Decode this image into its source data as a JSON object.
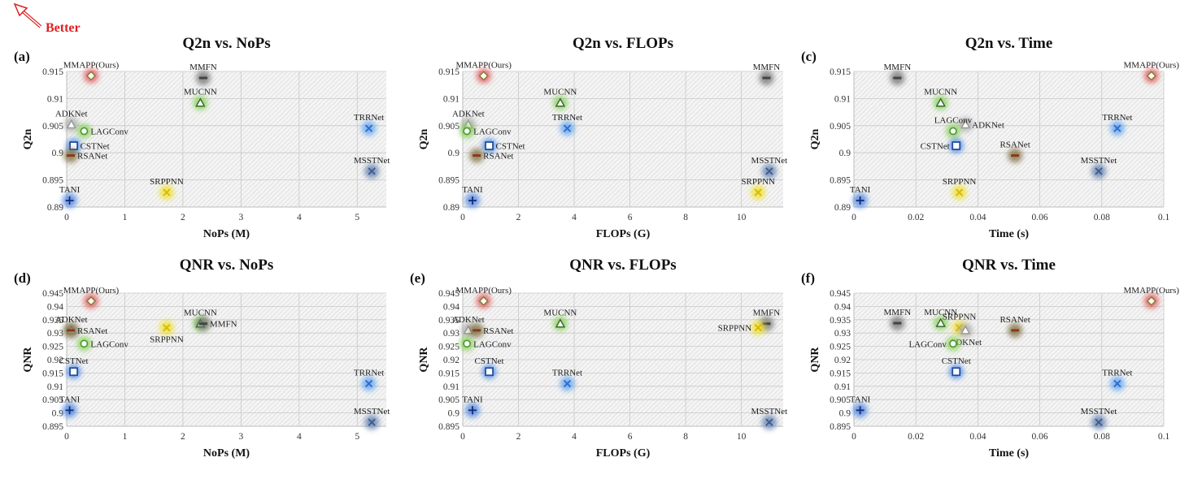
{
  "better_label": "Better",
  "colors": {
    "blue": "#3f7fe0",
    "green": "#7fcf4f",
    "red": "#e04a4a",
    "yellow": "#f0e020",
    "gray": "#6f6f6f",
    "brown": "#7a6a3a",
    "lightblue": "#5aa0ee",
    "slate": "#5a78a8",
    "silver": "#a8a8a8",
    "arrow": "#e02020"
  },
  "chart_data": [
    {
      "type": "scatter",
      "panel": "(a)",
      "title": "Q2n vs. NoPs",
      "xlabel": "NoPs (M)",
      "ylabel": "Q2n",
      "xlim": [
        0,
        5.5
      ],
      "ylim": [
        0.89,
        0.915
      ],
      "xticks": [
        0,
        1,
        2,
        3,
        4,
        5
      ],
      "yticks": [
        0.89,
        0.895,
        0.9,
        0.905,
        0.91,
        0.915
      ],
      "ytick_labels": [
        "0.89",
        "0.895",
        "0.9",
        "0.905",
        "0.91",
        "0.915"
      ],
      "grid": true,
      "points": [
        {
          "name": "MMAPP(Ours)",
          "x": 0.42,
          "y": 0.9142,
          "marker": "diamond",
          "color": "red",
          "label_pos": "above"
        },
        {
          "name": "MMFN",
          "x": 2.35,
          "y": 0.9138,
          "marker": "dash",
          "color": "gray",
          "label_pos": "above"
        },
        {
          "name": "MUCNN",
          "x": 2.3,
          "y": 0.9092,
          "marker": "triangle",
          "color": "green",
          "label_pos": "above"
        },
        {
          "name": "ADKNet",
          "x": 0.08,
          "y": 0.9052,
          "marker": "triangle",
          "color": "silver",
          "label_pos": "above"
        },
        {
          "name": "LAGConv",
          "x": 0.3,
          "y": 0.904,
          "marker": "circle",
          "color": "green",
          "label_pos": "right"
        },
        {
          "name": "CSTNet",
          "x": 0.12,
          "y": 0.9013,
          "marker": "square",
          "color": "blue",
          "label_pos": "right"
        },
        {
          "name": "RSANet",
          "x": 0.07,
          "y": 0.8995,
          "marker": "dash",
          "color": "brown",
          "label_pos": "right"
        },
        {
          "name": "TRRNet",
          "x": 5.2,
          "y": 0.9045,
          "marker": "x",
          "color": "lightblue",
          "label_pos": "above"
        },
        {
          "name": "MSSTNet",
          "x": 5.25,
          "y": 0.8966,
          "marker": "x",
          "color": "slate",
          "label_pos": "above"
        },
        {
          "name": "SRPPNN",
          "x": 1.72,
          "y": 0.8927,
          "marker": "x",
          "color": "yellow",
          "label_pos": "above"
        },
        {
          "name": "TANI",
          "x": 0.05,
          "y": 0.8912,
          "marker": "plus",
          "color": "blue",
          "label_pos": "above"
        }
      ]
    },
    {
      "type": "scatter",
      "panel": "",
      "title": "Q2n vs. FLOPs",
      "xlabel": "FLOPs (G)",
      "ylabel": "Q2n",
      "xlim": [
        0,
        11.5
      ],
      "ylim": [
        0.89,
        0.915
      ],
      "xticks": [
        0,
        2,
        4,
        6,
        8,
        10
      ],
      "yticks": [
        0.89,
        0.895,
        0.9,
        0.905,
        0.91,
        0.915
      ],
      "ytick_labels": [
        "0.89",
        "0.895",
        "0.9",
        "0.905",
        "0.91",
        "0.915"
      ],
      "grid": true,
      "points": [
        {
          "name": "MMAPP(Ours)",
          "x": 0.75,
          "y": 0.9142,
          "marker": "diamond",
          "color": "red",
          "label_pos": "above"
        },
        {
          "name": "MMFN",
          "x": 10.9,
          "y": 0.9138,
          "marker": "dash",
          "color": "gray",
          "label_pos": "above"
        },
        {
          "name": "MUCNN",
          "x": 3.5,
          "y": 0.9092,
          "marker": "triangle",
          "color": "green",
          "label_pos": "above"
        },
        {
          "name": "ADKNet",
          "x": 0.2,
          "y": 0.9052,
          "marker": "triangle",
          "color": "silver",
          "label_pos": "above"
        },
        {
          "name": "LAGConv",
          "x": 0.15,
          "y": 0.904,
          "marker": "circle",
          "color": "green",
          "label_pos": "right"
        },
        {
          "name": "CSTNet",
          "x": 0.95,
          "y": 0.9013,
          "marker": "square",
          "color": "blue",
          "label_pos": "right"
        },
        {
          "name": "RSANet",
          "x": 0.5,
          "y": 0.8995,
          "marker": "dash",
          "color": "brown",
          "label_pos": "right"
        },
        {
          "name": "TRRNet",
          "x": 3.75,
          "y": 0.9045,
          "marker": "x",
          "color": "lightblue",
          "label_pos": "above"
        },
        {
          "name": "MSSTNet",
          "x": 11.0,
          "y": 0.8966,
          "marker": "x",
          "color": "slate",
          "label_pos": "above"
        },
        {
          "name": "SRPPNN",
          "x": 10.6,
          "y": 0.8927,
          "marker": "x",
          "color": "yellow",
          "label_pos": "above"
        },
        {
          "name": "TANI",
          "x": 0.35,
          "y": 0.8912,
          "marker": "plus",
          "color": "blue",
          "label_pos": "above"
        }
      ]
    },
    {
      "type": "scatter",
      "panel": "(c)",
      "title": "Q2n vs. Time",
      "xlabel": "Time (s)",
      "ylabel": "Q2n",
      "xlim": [
        0,
        0.1
      ],
      "ylim": [
        0.89,
        0.915
      ],
      "xticks": [
        0,
        0.02,
        0.04,
        0.06,
        0.08,
        0.1
      ],
      "yticks": [
        0.89,
        0.895,
        0.9,
        0.905,
        0.91,
        0.915
      ],
      "xtick_labels": [
        "0",
        "0.02",
        "0.04",
        "0.06",
        "0.08",
        "0.1"
      ],
      "ytick_labels": [
        "0.89",
        "0.895",
        "0.9",
        "0.905",
        "0.91",
        "0.915"
      ],
      "grid": true,
      "points": [
        {
          "name": "MMAPP(Ours)",
          "x": 0.096,
          "y": 0.9142,
          "marker": "diamond",
          "color": "red",
          "label_pos": "above"
        },
        {
          "name": "MMFN",
          "x": 0.014,
          "y": 0.9138,
          "marker": "dash",
          "color": "gray",
          "label_pos": "above"
        },
        {
          "name": "MUCNN",
          "x": 0.028,
          "y": 0.9092,
          "marker": "triangle",
          "color": "green",
          "label_pos": "above"
        },
        {
          "name": "ADKNet",
          "x": 0.036,
          "y": 0.9052,
          "marker": "triangle",
          "color": "silver",
          "label_pos": "right"
        },
        {
          "name": "LAGConv",
          "x": 0.032,
          "y": 0.904,
          "marker": "circle",
          "color": "green",
          "label_pos": "above"
        },
        {
          "name": "CSTNet",
          "x": 0.033,
          "y": 0.9013,
          "marker": "square",
          "color": "blue",
          "label_pos": "left"
        },
        {
          "name": "RSANet",
          "x": 0.052,
          "y": 0.8995,
          "marker": "dash",
          "color": "brown",
          "label_pos": "above"
        },
        {
          "name": "TRRNet",
          "x": 0.085,
          "y": 0.9045,
          "marker": "x",
          "color": "lightblue",
          "label_pos": "above"
        },
        {
          "name": "MSSTNet",
          "x": 0.079,
          "y": 0.8966,
          "marker": "x",
          "color": "slate",
          "label_pos": "above"
        },
        {
          "name": "SRPPNN",
          "x": 0.034,
          "y": 0.8927,
          "marker": "x",
          "color": "yellow",
          "label_pos": "above"
        },
        {
          "name": "TANI",
          "x": 0.002,
          "y": 0.8912,
          "marker": "plus",
          "color": "blue",
          "label_pos": "above"
        }
      ]
    },
    {
      "type": "scatter",
      "panel": "(d)",
      "title": "QNR vs. NoPs",
      "xlabel": "NoPs (M)",
      "ylabel": "QNR",
      "xlim": [
        0,
        5.5
      ],
      "ylim": [
        0.895,
        0.945
      ],
      "xticks": [
        0,
        1,
        2,
        3,
        4,
        5
      ],
      "yticks": [
        0.895,
        0.9,
        0.905,
        0.91,
        0.915,
        0.92,
        0.925,
        0.93,
        0.935,
        0.94,
        0.945
      ],
      "ytick_labels": [
        "0.895",
        "0.9",
        "0.905",
        "0.91",
        "0.915",
        "0.92",
        "0.925",
        "0.93",
        "0.935",
        "0.94",
        "0.945"
      ],
      "grid": true,
      "points": [
        {
          "name": "MMAPP(Ours)",
          "x": 0.42,
          "y": 0.942,
          "marker": "diamond",
          "color": "red",
          "label_pos": "above"
        },
        {
          "name": "MUCNN",
          "x": 2.3,
          "y": 0.9335,
          "marker": "triangle",
          "color": "green",
          "label_pos": "above"
        },
        {
          "name": "MMFN",
          "x": 2.35,
          "y": 0.9335,
          "marker": "dash",
          "color": "gray",
          "label_pos": "right"
        },
        {
          "name": "ADKNet",
          "x": 0.08,
          "y": 0.931,
          "marker": "triangle",
          "color": "silver",
          "label_pos": "above"
        },
        {
          "name": "RSANet",
          "x": 0.07,
          "y": 0.931,
          "marker": "dash",
          "color": "brown",
          "label_pos": "right"
        },
        {
          "name": "LAGConv",
          "x": 0.3,
          "y": 0.926,
          "marker": "circle",
          "color": "green",
          "label_pos": "right"
        },
        {
          "name": "SRPPNN",
          "x": 1.72,
          "y": 0.932,
          "marker": "x",
          "color": "yellow",
          "label_pos": "below"
        },
        {
          "name": "CSTNet",
          "x": 0.12,
          "y": 0.9155,
          "marker": "square",
          "color": "blue",
          "label_pos": "above"
        },
        {
          "name": "TRRNet",
          "x": 5.2,
          "y": 0.911,
          "marker": "x",
          "color": "lightblue",
          "label_pos": "above"
        },
        {
          "name": "TANI",
          "x": 0.05,
          "y": 0.901,
          "marker": "plus",
          "color": "blue",
          "label_pos": "above"
        },
        {
          "name": "MSSTNet",
          "x": 5.25,
          "y": 0.8965,
          "marker": "x",
          "color": "slate",
          "label_pos": "above"
        }
      ]
    },
    {
      "type": "scatter",
      "panel": "(e)",
      "title": "QNR vs. FLOPs",
      "xlabel": "FLOPs (G)",
      "ylabel": "QNR",
      "xlim": [
        0,
        11.5
      ],
      "ylim": [
        0.895,
        0.945
      ],
      "xticks": [
        0,
        2,
        4,
        6,
        8,
        10
      ],
      "yticks": [
        0.895,
        0.9,
        0.905,
        0.91,
        0.915,
        0.92,
        0.925,
        0.93,
        0.935,
        0.94,
        0.945
      ],
      "ytick_labels": [
        "0.895",
        "0.9",
        "0.905",
        "0.91",
        "0.915",
        "0.92",
        "0.925",
        "0.93",
        "0.935",
        "0.94",
        "0.945"
      ],
      "grid": true,
      "points": [
        {
          "name": "MMAPP(Ours)",
          "x": 0.75,
          "y": 0.942,
          "marker": "diamond",
          "color": "red",
          "label_pos": "above"
        },
        {
          "name": "MUCNN",
          "x": 3.5,
          "y": 0.9335,
          "marker": "triangle",
          "color": "green",
          "label_pos": "above"
        },
        {
          "name": "MMFN",
          "x": 10.9,
          "y": 0.9335,
          "marker": "dash",
          "color": "gray",
          "label_pos": "above"
        },
        {
          "name": "SRPPNN",
          "x": 10.6,
          "y": 0.932,
          "marker": "x",
          "color": "yellow",
          "label_pos": "left"
        },
        {
          "name": "ADKNet",
          "x": 0.2,
          "y": 0.931,
          "marker": "triangle",
          "color": "silver",
          "label_pos": "above"
        },
        {
          "name": "RSANet",
          "x": 0.5,
          "y": 0.931,
          "marker": "dash",
          "color": "brown",
          "label_pos": "right"
        },
        {
          "name": "LAGConv",
          "x": 0.15,
          "y": 0.926,
          "marker": "circle",
          "color": "green",
          "label_pos": "right"
        },
        {
          "name": "CSTNet",
          "x": 0.95,
          "y": 0.9155,
          "marker": "square",
          "color": "blue",
          "label_pos": "above"
        },
        {
          "name": "TRRNet",
          "x": 3.75,
          "y": 0.911,
          "marker": "x",
          "color": "lightblue",
          "label_pos": "above"
        },
        {
          "name": "TANI",
          "x": 0.35,
          "y": 0.901,
          "marker": "plus",
          "color": "blue",
          "label_pos": "above"
        },
        {
          "name": "MSSTNet",
          "x": 11.0,
          "y": 0.8965,
          "marker": "x",
          "color": "slate",
          "label_pos": "above"
        }
      ]
    },
    {
      "type": "scatter",
      "panel": "(f)",
      "title": "QNR vs. Time",
      "xlabel": "Time (s)",
      "ylabel": "QNR",
      "xlim": [
        0,
        0.1
      ],
      "ylim": [
        0.895,
        0.945
      ],
      "xticks": [
        0,
        0.02,
        0.04,
        0.06,
        0.08,
        0.1
      ],
      "yticks": [
        0.895,
        0.9,
        0.905,
        0.91,
        0.915,
        0.92,
        0.925,
        0.93,
        0.935,
        0.94,
        0.945
      ],
      "xtick_labels": [
        "0",
        "0.02",
        "0.04",
        "0.06",
        "0.08",
        "0.1"
      ],
      "ytick_labels": [
        "0.895",
        "0.9",
        "0.905",
        "0.91",
        "0.915",
        "0.92",
        "0.925",
        "0.93",
        "0.935",
        "0.94",
        "0.945"
      ],
      "grid": true,
      "points": [
        {
          "name": "MMAPP(Ours)",
          "x": 0.096,
          "y": 0.942,
          "marker": "diamond",
          "color": "red",
          "label_pos": "above"
        },
        {
          "name": "MMFN",
          "x": 0.014,
          "y": 0.9337,
          "marker": "dash",
          "color": "gray",
          "label_pos": "above"
        },
        {
          "name": "MUCNN",
          "x": 0.028,
          "y": 0.9337,
          "marker": "triangle",
          "color": "green",
          "label_pos": "above"
        },
        {
          "name": "SRPPNN",
          "x": 0.034,
          "y": 0.932,
          "marker": "x",
          "color": "yellow",
          "label_pos": "above"
        },
        {
          "name": "RSANet",
          "x": 0.052,
          "y": 0.931,
          "marker": "dash",
          "color": "brown",
          "label_pos": "above"
        },
        {
          "name": "ADKNet",
          "x": 0.036,
          "y": 0.931,
          "marker": "triangle",
          "color": "silver",
          "label_pos": "below"
        },
        {
          "name": "LAGConv",
          "x": 0.032,
          "y": 0.926,
          "marker": "circle",
          "color": "green",
          "label_pos": "left"
        },
        {
          "name": "CSTNet",
          "x": 0.033,
          "y": 0.9155,
          "marker": "square",
          "color": "blue",
          "label_pos": "above"
        },
        {
          "name": "TRRNet",
          "x": 0.085,
          "y": 0.911,
          "marker": "x",
          "color": "lightblue",
          "label_pos": "above"
        },
        {
          "name": "TANI",
          "x": 0.002,
          "y": 0.901,
          "marker": "plus",
          "color": "blue",
          "label_pos": "above"
        },
        {
          "name": "MSSTNet",
          "x": 0.079,
          "y": 0.8965,
          "marker": "x",
          "color": "slate",
          "label_pos": "above"
        }
      ]
    }
  ]
}
